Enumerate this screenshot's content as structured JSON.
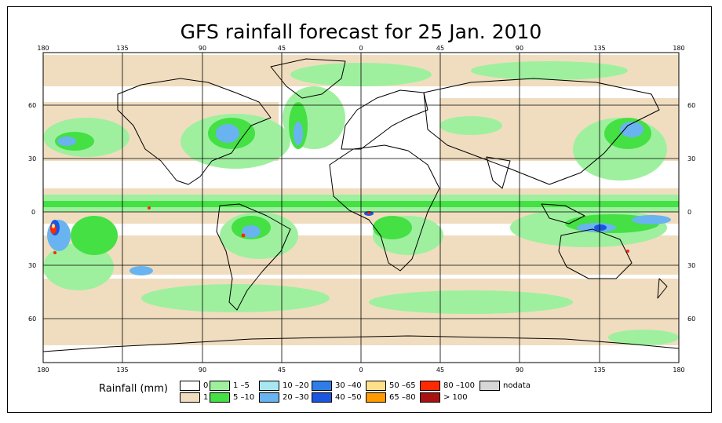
{
  "title": "GFS rainfall forecast for 25 Jan. 2010",
  "lon_ticks": [
    "180",
    "135",
    "90",
    "45",
    "0",
    "45",
    "90",
    "135",
    "180"
  ],
  "lat_ticks": [
    "60",
    "30",
    "0",
    "30",
    "60"
  ],
  "legend": {
    "title": "Rainfall (mm)",
    "items": [
      {
        "label": "0",
        "color": "#ffffff"
      },
      {
        "label": "1",
        "color": "#f0ddbf"
      },
      {
        "label": "1 –5",
        "color": "#9ef09e"
      },
      {
        "label": "5 –10",
        "color": "#44e044"
      },
      {
        "label": "10 –20",
        "color": "#a8e6f2"
      },
      {
        "label": "20 –30",
        "color": "#69b4f0"
      },
      {
        "label": "30 –40",
        "color": "#2f7de6"
      },
      {
        "label": "40 –50",
        "color": "#1a56e0"
      },
      {
        "label": "50 –65",
        "color": "#ffe08a"
      },
      {
        "label": "65 –80",
        "color": "#ff9a00"
      },
      {
        "label": "80 –100",
        "color": "#ff2a00"
      },
      {
        "label": "> 100",
        "color": "#aa1111"
      },
      {
        "label": "nodata",
        "color": "#d6d6d6"
      }
    ]
  }
}
